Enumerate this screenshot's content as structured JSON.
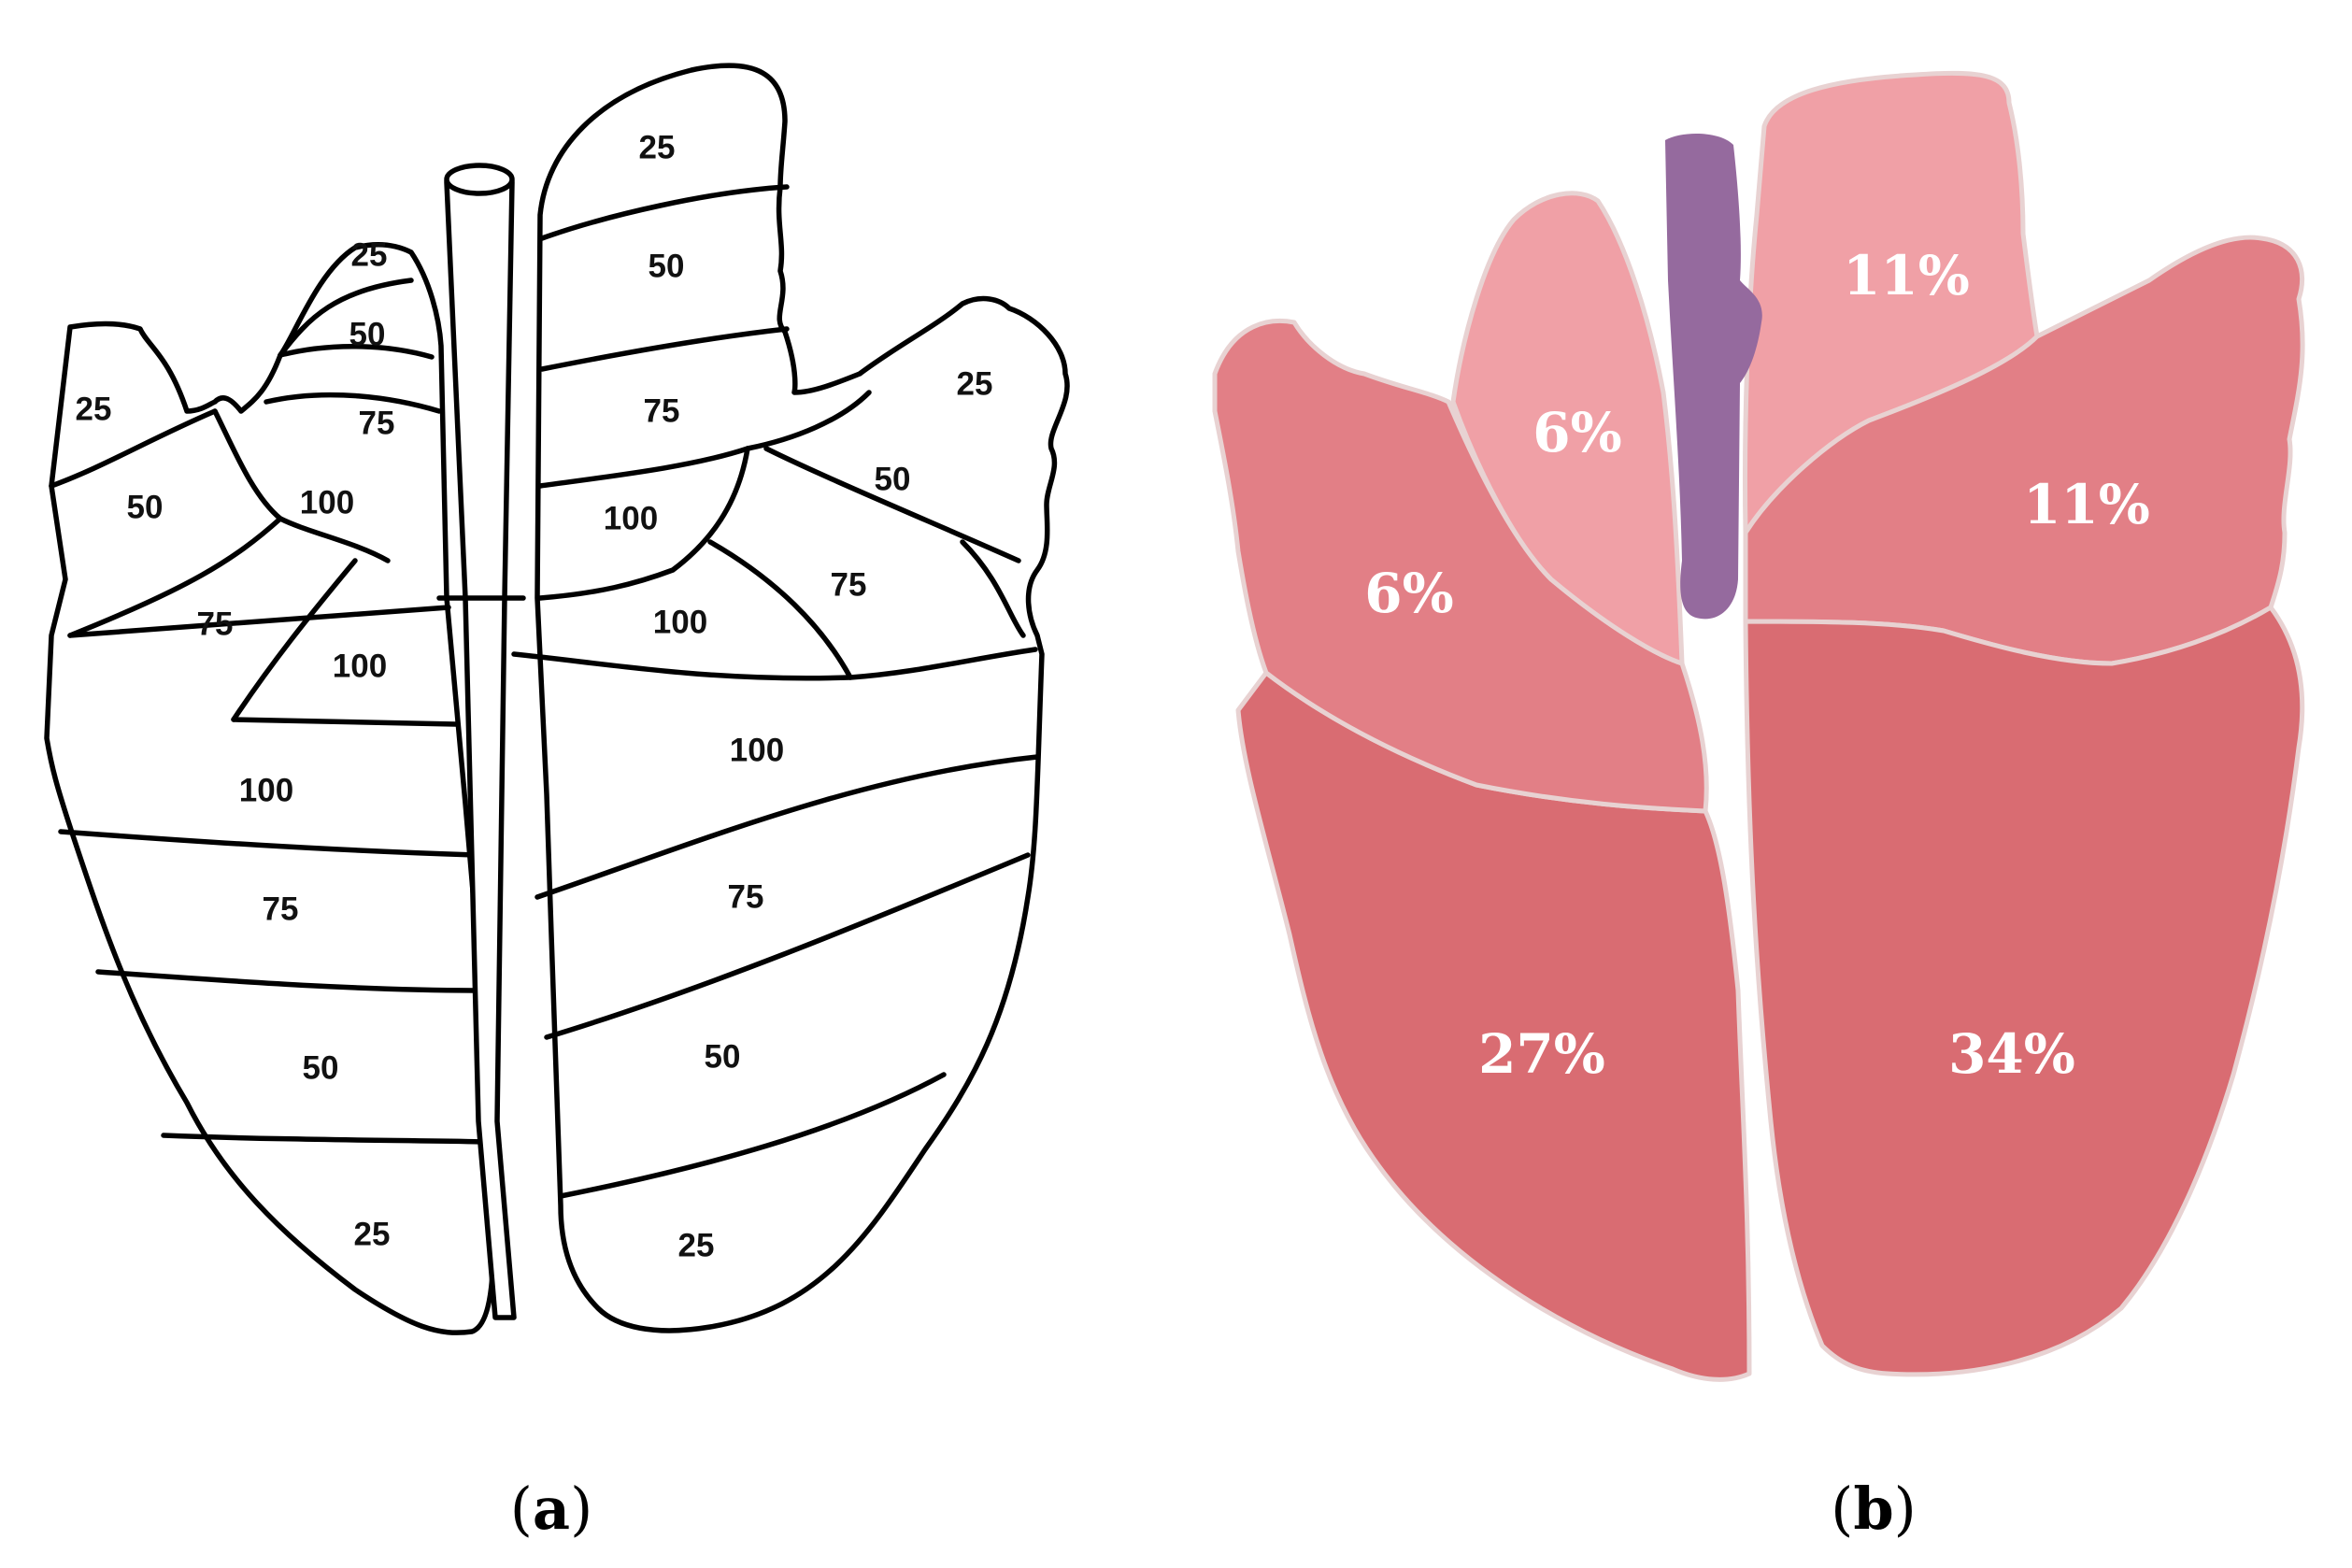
{
  "panel_a": {
    "caption_open": "(",
    "caption_letter": "a",
    "caption_close": ")",
    "labels": {
      "l_cranial_cr_25": "25",
      "l_cranial_cr_50": "50",
      "l_cranial_cr_75": "75",
      "l_cranial_cd_25": "25",
      "l_cranial_cd_50": "50",
      "l_cranial_cd_75": "75",
      "l_cranial_cd_100": "100",
      "l_mid_100": "100",
      "l_caudal_100": "100",
      "l_caudal_75": "75",
      "l_caudal_50": "50",
      "l_caudal_25": "25",
      "r_cranial_cr_25": "25",
      "r_cranial_cr_50": "50",
      "r_cranial_cr_75": "75",
      "r_cranial_cr_100": "100",
      "r_mid_25": "25",
      "r_mid_50": "50",
      "r_mid_75": "75",
      "r_mid_100": "100",
      "r_caudal_100": "100",
      "r_caudal_75": "75",
      "r_caudal_50": "50",
      "r_caudal_25": "25"
    }
  },
  "panel_b": {
    "caption_open": "(",
    "caption_letter": "b",
    "caption_close": ")",
    "lobes": {
      "left_cranial_cranial": "6%",
      "left_cranial_caudal": "6%",
      "left_caudal": "27%",
      "right_cranial": "11%",
      "right_middle": "11%",
      "right_caudal": "34%"
    },
    "colors": {
      "cranial_light": "#f0a0a6",
      "middle": "#e27f86",
      "caudal": "#d96c72",
      "trachea": "#956a9e"
    }
  }
}
